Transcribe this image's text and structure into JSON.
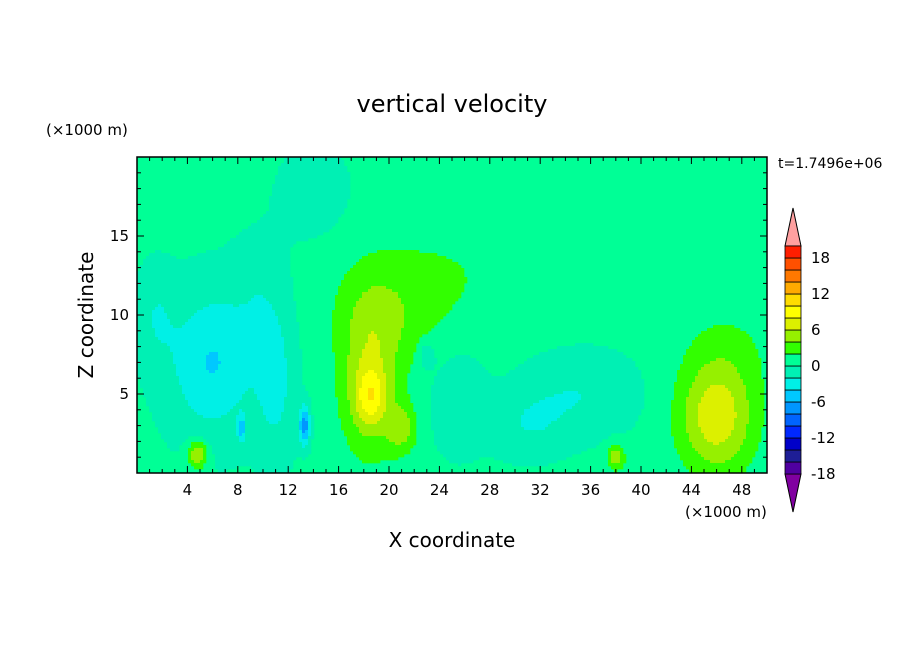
{
  "chart_data": {
    "type": "heatmap",
    "title": "vertical velocity",
    "xlabel": "X coordinate",
    "ylabel": "Z coordinate",
    "x_unit": "(×1000 m)",
    "y_unit": "(×1000 m)",
    "time_label": "t=1.7496e+06",
    "xlim": [
      0,
      50
    ],
    "ylim": [
      0,
      20
    ],
    "x_ticks": [
      4,
      8,
      12,
      16,
      20,
      24,
      28,
      32,
      36,
      40,
      44,
      48
    ],
    "y_ticks": [
      5,
      10,
      15
    ],
    "colorbar": {
      "levels": [
        -20,
        -18,
        -16,
        -14,
        -12,
        -10,
        -8,
        -6,
        -4,
        -2,
        0,
        2,
        4,
        6,
        8,
        10,
        12,
        14,
        16,
        18,
        20
      ],
      "tick_labels": [
        18,
        12,
        6,
        0,
        -6,
        -12,
        -18
      ],
      "colors": [
        "#8000a0",
        "#5000a0",
        "#1e1e96",
        "#0000c8",
        "#0028ff",
        "#0064ff",
        "#0096ff",
        "#00c8ff",
        "#00f0e6",
        "#00f0b4",
        "#00ff96",
        "#32ff00",
        "#96f000",
        "#dcf000",
        "#ffff00",
        "#ffdc00",
        "#ffaa00",
        "#ff7800",
        "#ff5000",
        "#ff1e00",
        "#ffa0a0"
      ]
    },
    "background_value": 0.5,
    "grid": false,
    "legend": "colorbar-right"
  }
}
